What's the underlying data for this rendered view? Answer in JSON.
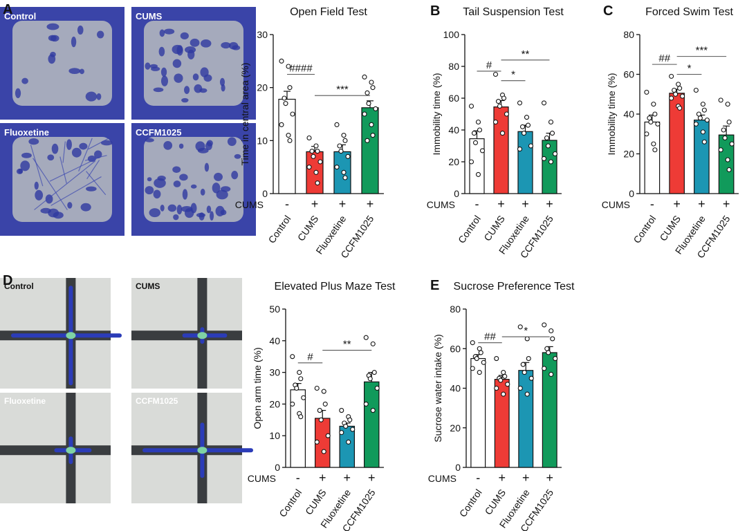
{
  "colors": {
    "control": "#ffffff",
    "cums": "#ee3b36",
    "fluoxetine": "#1c96b3",
    "ccfm1025": "#119a5b",
    "of_bg": "#3a44a8",
    "of_inner": "#b9bcc0",
    "epm_bg": "#d9dbd8",
    "epm_arm": "#3a3d40",
    "epm_track": "#2b3cb8"
  },
  "groups": [
    "Control",
    "CUMS",
    "Fluoxetine",
    "CCFM1025"
  ],
  "cums_row": {
    "label": "CUMS",
    "signs": [
      "-",
      "+",
      "+",
      "+"
    ]
  },
  "heatmaps": {
    "a": {
      "letter": "A",
      "labels": [
        "Control",
        "CUMS",
        "Fluoxetine",
        "CCFM1025"
      ]
    },
    "d": {
      "letter": "D",
      "labels": [
        "Control",
        "CUMS",
        "Fluoxetine",
        "CCFM1025"
      ]
    }
  },
  "chart_data": [
    {
      "id": "open-field",
      "letter": "",
      "type": "bar",
      "title": "Open Field Test",
      "ylabel": "Time in central area (%)",
      "ylim": [
        0,
        30
      ],
      "yticks": [
        0,
        10,
        20,
        30
      ],
      "categories": [
        "Control",
        "CUMS",
        "Fluoxetine",
        "CCFM1025"
      ],
      "values": [
        17.8,
        7.9,
        7.9,
        16.2
      ],
      "errors": [
        1.5,
        1.0,
        1.3,
        1.3
      ],
      "points": [
        [
          25,
          24,
          20,
          18,
          17,
          15,
          13,
          11,
          10
        ],
        [
          10.5,
          9,
          8,
          8,
          7,
          6,
          5,
          4,
          2
        ],
        [
          13,
          11,
          10,
          9,
          8,
          7,
          5,
          4,
          3
        ],
        [
          22,
          21,
          20,
          19,
          17,
          16,
          15,
          13,
          11,
          10
        ]
      ],
      "sig": [
        {
          "label": "####",
          "from": 0,
          "to": 1,
          "y": 22.5
        },
        {
          "label": "***",
          "from": 1,
          "to": 3,
          "y": 18.5
        }
      ]
    },
    {
      "id": "tail-suspension",
      "letter": "B",
      "type": "bar",
      "title": "Tail Suspension Test",
      "ylabel": "Immobility time (%)",
      "ylim": [
        0,
        100
      ],
      "yticks": [
        0,
        20,
        40,
        60,
        80,
        100
      ],
      "categories": [
        "Control",
        "CUMS",
        "Fluoxetine",
        "CCFM1025"
      ],
      "values": [
        34.5,
        54.5,
        39,
        33.5
      ],
      "errors": [
        5,
        4,
        4,
        4.5
      ],
      "points": [
        [
          55,
          45,
          40,
          38,
          32,
          27,
          20,
          12
        ],
        [
          75,
          62,
          60,
          58,
          55,
          50,
          45,
          38
        ],
        [
          57,
          48,
          43,
          42,
          38,
          30,
          28
        ],
        [
          57,
          45,
          38,
          35,
          30,
          25,
          22,
          20
        ]
      ],
      "sig": [
        {
          "label": "#",
          "from": 0,
          "to": 1,
          "y": 77
        },
        {
          "label": "*",
          "from": 1,
          "to": 2,
          "y": 71
        },
        {
          "label": "**",
          "from": 1,
          "to": 3,
          "y": 84
        }
      ]
    },
    {
      "id": "forced-swim",
      "letter": "C",
      "type": "bar",
      "title": "Forced Swim Test",
      "ylabel": "Immobility time (%)",
      "ylim": [
        0,
        80
      ],
      "yticks": [
        0,
        20,
        40,
        60,
        80
      ],
      "categories": [
        "Control",
        "CUMS",
        "Fluoxetine",
        "CCFM1025"
      ],
      "values": [
        36,
        50.5,
        37,
        29.5
      ],
      "errors": [
        3.5,
        2,
        2.5,
        4.5
      ],
      "points": [
        [
          51,
          45,
          40,
          38,
          36,
          35,
          30,
          25,
          22
        ],
        [
          59,
          55,
          53,
          52,
          50,
          49,
          48,
          44,
          43
        ],
        [
          52,
          45,
          42,
          40,
          38,
          37,
          35,
          31,
          26
        ],
        [
          47,
          45,
          36,
          32,
          28,
          25,
          22,
          17,
          12
        ]
      ],
      "sig": [
        {
          "label": "##",
          "from": 0,
          "to": 1,
          "y": 65
        },
        {
          "label": "*",
          "from": 1,
          "to": 2,
          "y": 60
        },
        {
          "label": "***",
          "from": 1,
          "to": 3,
          "y": 69
        }
      ]
    },
    {
      "id": "elevated-plus-maze",
      "letter": "",
      "type": "bar",
      "title": "Elevated Plus Maze Test",
      "ylabel": "Open arm time (%)",
      "ylim": [
        0,
        50
      ],
      "yticks": [
        0,
        10,
        20,
        30,
        40,
        50
      ],
      "categories": [
        "Control",
        "CUMS",
        "Fluoxetine",
        "CCFM1025"
      ],
      "values": [
        24.5,
        15.5,
        13,
        27
      ],
      "errors": [
        2,
        2.5,
        1,
        3
      ],
      "points": [
        [
          35,
          30,
          28,
          26,
          25,
          22,
          20,
          17,
          16
        ],
        [
          25,
          24,
          20,
          18,
          15,
          10,
          8,
          5
        ],
        [
          18,
          16,
          15,
          14,
          13,
          12,
          11,
          8
        ],
        [
          41,
          39,
          30,
          29,
          28,
          25,
          20,
          18
        ]
      ],
      "sig": [
        {
          "label": "#",
          "from": 0,
          "to": 1,
          "y": 33
        },
        {
          "label": "**",
          "from": 1,
          "to": 3,
          "y": 37
        }
      ]
    },
    {
      "id": "sucrose-preference",
      "letter": "E",
      "type": "bar",
      "title": "Sucrose Preference Test",
      "ylabel": "Sucrose water intake (%)",
      "ylim": [
        0,
        80
      ],
      "yticks": [
        0,
        20,
        40,
        60,
        80
      ],
      "categories": [
        "Control",
        "CUMS",
        "Fluoxetine",
        "CCFM1025"
      ],
      "values": [
        55,
        44.5,
        49,
        58
      ],
      "errors": [
        2,
        2,
        4,
        3
      ],
      "points": [
        [
          63,
          60,
          58,
          56,
          55,
          53,
          50,
          48
        ],
        [
          55,
          48,
          46,
          45,
          44,
          42,
          40,
          37
        ],
        [
          71,
          65,
          55,
          52,
          48,
          45,
          40,
          37
        ],
        [
          72,
          69,
          65,
          60,
          58,
          55,
          50,
          47
        ]
      ],
      "sig": [
        {
          "label": "##",
          "from": 0,
          "to": 1,
          "y": 63
        },
        {
          "label": "*",
          "from": 1,
          "to": 3,
          "y": 66
        }
      ]
    }
  ]
}
